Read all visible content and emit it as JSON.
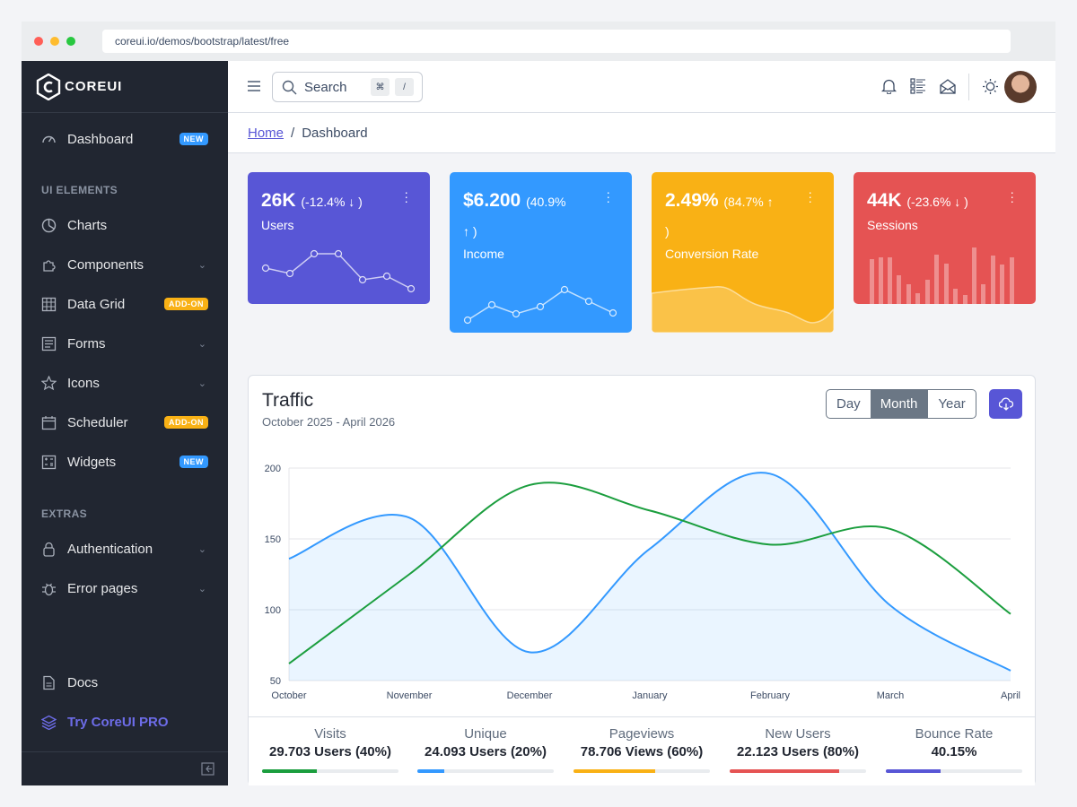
{
  "browser": {
    "url": "coreui.io/demos/bootstrap/latest/free"
  },
  "brand": {
    "name": "COREUI"
  },
  "sidebar": {
    "items": [
      {
        "label": "Dashboard",
        "icon": "speedometer-icon",
        "badge": "NEW"
      },
      {
        "label": "Charts",
        "icon": "chart-pie-icon"
      },
      {
        "label": "Components",
        "icon": "puzzle-icon"
      },
      {
        "label": "Data Grid",
        "icon": "grid-icon",
        "badge": "ADD-ON"
      },
      {
        "label": "Forms",
        "icon": "notes-icon"
      },
      {
        "label": "Icons",
        "icon": "star-icon"
      },
      {
        "label": "Scheduler",
        "icon": "calendar-icon",
        "badge": "ADD-ON"
      },
      {
        "label": "Widgets",
        "icon": "calculator-icon",
        "badge": "NEW"
      },
      {
        "label": "Authentication",
        "icon": "lock-icon"
      },
      {
        "label": "Error pages",
        "icon": "bug-icon"
      },
      {
        "label": "Docs",
        "icon": "description-icon"
      },
      {
        "label": "Try CoreUI PRO",
        "icon": "layers-icon"
      }
    ],
    "section_ui": "UI ELEMENTS",
    "section_extras": "EXTRAS"
  },
  "header": {
    "search_placeholder": "Search",
    "kbd1": "⌘",
    "kbd2": "/"
  },
  "breadcrumb": {
    "home": "Home",
    "sep": "/",
    "current": "Dashboard"
  },
  "cards": [
    {
      "value": "26K",
      "change": "(-12.4% ↓ )",
      "label": "Users",
      "color": "#5856d6"
    },
    {
      "value": "$6.200",
      "change": "(40.9%",
      "change2": "↑ )",
      "label": "Income",
      "color": "#3399ff"
    },
    {
      "value": "2.49%",
      "change": "(84.7% ↑",
      "change2": ")",
      "label": "Conversion Rate",
      "color": "#f9b115"
    },
    {
      "value": "44K",
      "change": "(-23.6% ↓ )",
      "label": "Sessions",
      "color": "#e55353"
    }
  ],
  "traffic": {
    "title": "Traffic",
    "subtitle": "October 2025 - April 2026",
    "buttons": [
      "Day",
      "Month",
      "Year"
    ],
    "active": "Month"
  },
  "chart_data": {
    "type": "line",
    "categories": [
      "October",
      "November",
      "December",
      "January",
      "February",
      "March",
      "April"
    ],
    "yticks": [
      50,
      100,
      150,
      200
    ],
    "ylim": [
      50,
      200
    ],
    "series": [
      {
        "values": [
          136,
          165,
          70,
          143,
          196,
          103,
          57
        ],
        "color": "#3399ff",
        "fill": true
      },
      {
        "values": [
          62,
          125,
          188,
          170,
          146,
          157,
          97
        ],
        "color": "#1b9e3e",
        "fill": false
      }
    ]
  },
  "stats": [
    {
      "label": "Visits",
      "value": "29.703 Users (40%)",
      "percent": 40,
      "color": "#1b9e3e"
    },
    {
      "label": "Unique",
      "value": "24.093 Users (20%)",
      "percent": 20,
      "color": "#3399ff"
    },
    {
      "label": "Pageviews",
      "value": "78.706 Views (60%)",
      "percent": 60,
      "color": "#f9b115"
    },
    {
      "label": "New Users",
      "value": "22.123 Users (80%)",
      "percent": 80,
      "color": "#e55353"
    },
    {
      "label": "Bounce Rate",
      "value": "40.15%",
      "percent": 40,
      "color": "#5856d6"
    }
  ]
}
